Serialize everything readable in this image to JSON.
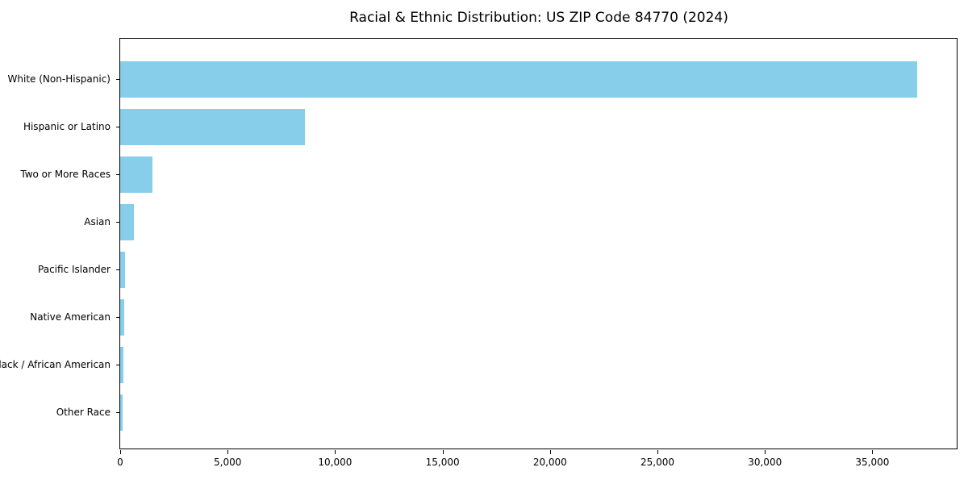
{
  "chart_data": {
    "type": "bar",
    "orientation": "horizontal",
    "title": "Racial & Ethnic Distribution: US ZIP Code 84770 (2024)",
    "categories": [
      "White (Non-Hispanic)",
      "Hispanic or Latino",
      "Two or More Races",
      "Asian",
      "Pacific Islander",
      "Native American",
      "Black / African American",
      "Other Race"
    ],
    "values": [
      37100,
      8600,
      1500,
      640,
      225,
      190,
      150,
      110
    ],
    "xlabel": "",
    "ylabel": "",
    "xlim": [
      0,
      39000
    ],
    "x_ticks": [
      {
        "value": 0,
        "label": "0"
      },
      {
        "value": 5000,
        "label": "5,000"
      },
      {
        "value": 10000,
        "label": "10,000"
      },
      {
        "value": 15000,
        "label": "15,000"
      },
      {
        "value": 20000,
        "label": "20,000"
      },
      {
        "value": 25000,
        "label": "25,000"
      },
      {
        "value": 30000,
        "label": "30,000"
      },
      {
        "value": 35000,
        "label": "35,000"
      }
    ],
    "bar_color": "#87CEEB",
    "grid": false,
    "legend": null,
    "background_color": "#ffffff",
    "spine_color": "#000000"
  },
  "layout_note_values_are_people_counts": "counts of residents"
}
